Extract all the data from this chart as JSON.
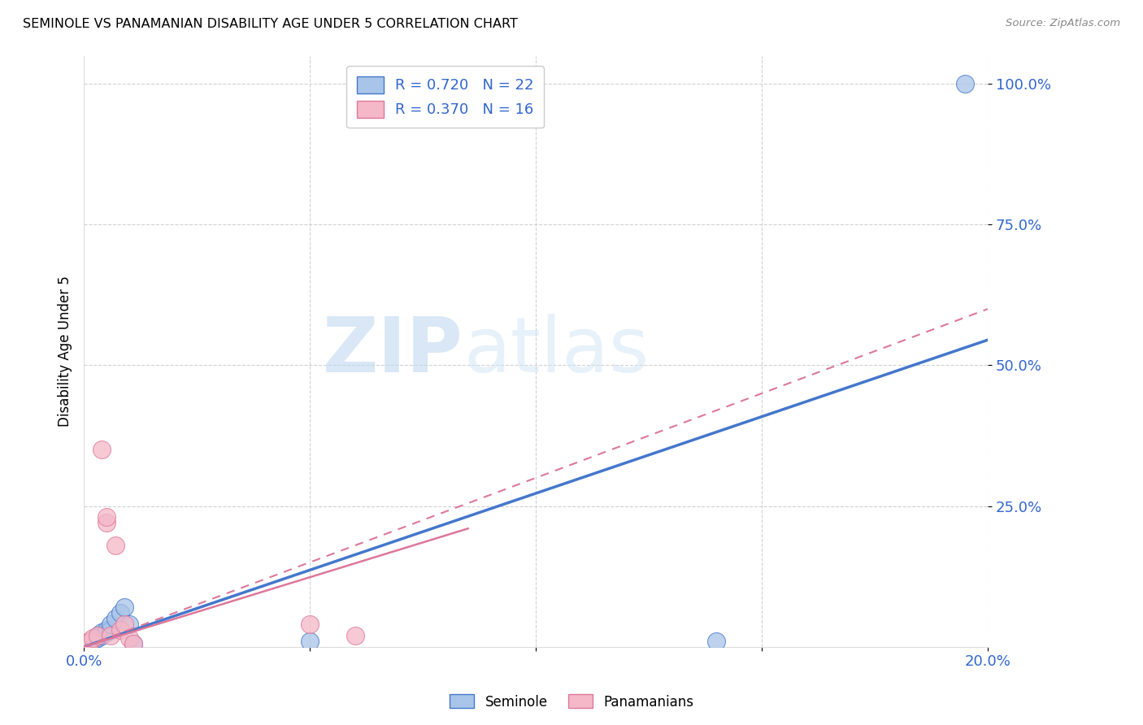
{
  "title": "SEMINOLE VS PANAMANIAN DISABILITY AGE UNDER 5 CORRELATION CHART",
  "source": "Source: ZipAtlas.com",
  "ylabel": "Disability Age Under 5",
  "watermark_zip": "ZIP",
  "watermark_atlas": "atlas",
  "seminole_R": 0.72,
  "seminole_N": 22,
  "panamanian_R": 0.37,
  "panamanian_N": 16,
  "seminole_color": "#a8c4e8",
  "panamanian_color": "#f4b8c8",
  "seminole_line_color": "#4477cc",
  "panamanian_line_color": "#dd7799",
  "xlim": [
    0.0,
    0.2
  ],
  "ylim": [
    0.0,
    1.05
  ],
  "xticks": [
    0.0,
    0.05,
    0.1,
    0.15,
    0.2
  ],
  "xtick_labels": [
    "0.0%",
    "",
    "",
    "",
    "20.0%"
  ],
  "ytick_positions": [
    0.25,
    0.5,
    0.75,
    1.0
  ],
  "ytick_labels": [
    "25.0%",
    "50.0%",
    "75.0%",
    "100.0%"
  ],
  "seminole_x": [
    0.0005,
    0.001,
    0.0015,
    0.002,
    0.002,
    0.0025,
    0.003,
    0.003,
    0.004,
    0.004,
    0.005,
    0.005,
    0.006,
    0.006,
    0.007,
    0.008,
    0.009,
    0.01,
    0.011,
    0.05,
    0.14,
    0.195
  ],
  "seminole_y": [
    0.005,
    0.005,
    0.008,
    0.01,
    0.01,
    0.015,
    0.015,
    0.02,
    0.02,
    0.025,
    0.025,
    0.03,
    0.03,
    0.04,
    0.05,
    0.06,
    0.07,
    0.04,
    0.005,
    0.01,
    0.01,
    1.0
  ],
  "panamanian_x": [
    0.0005,
    0.001,
    0.0015,
    0.002,
    0.003,
    0.004,
    0.005,
    0.006,
    0.007,
    0.008,
    0.009,
    0.01,
    0.011,
    0.05,
    0.06,
    0.005
  ],
  "panamanian_y": [
    0.005,
    0.01,
    0.01,
    0.015,
    0.02,
    0.35,
    0.22,
    0.02,
    0.18,
    0.03,
    0.04,
    0.015,
    0.005,
    0.04,
    0.02,
    0.23
  ],
  "seminole_trendline": [
    0.0,
    0.0,
    0.2,
    0.545
  ],
  "panamanian_trendline_solid": [
    0.0,
    0.0,
    0.085,
    0.21
  ],
  "panamanian_trendline_dashed": [
    0.0,
    0.0,
    0.2,
    0.6
  ],
  "background_color": "#ffffff",
  "grid_color": "#cccccc"
}
